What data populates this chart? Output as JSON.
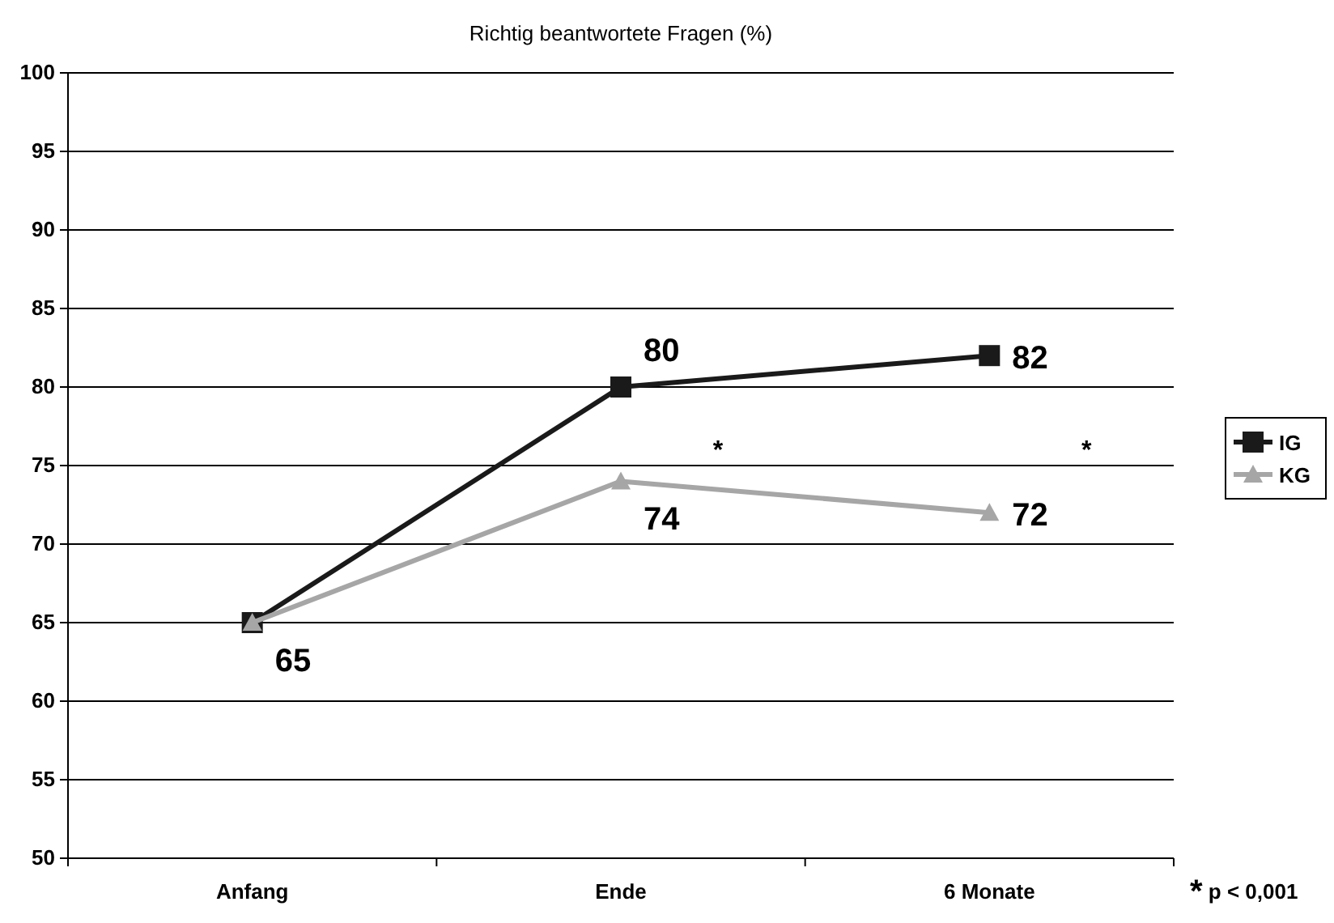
{
  "chart_data": {
    "type": "line",
    "title": "Richtig beantwortete Fragen (%)",
    "categories": [
      "Anfang",
      "Ende",
      "6 Monate"
    ],
    "series": [
      {
        "name": "IG",
        "color": "#1a1a1a",
        "values": [
          65,
          80,
          82
        ],
        "marker": "square",
        "value_labels": [
          null,
          "80",
          "82"
        ]
      },
      {
        "name": "KG",
        "color": "#a6a6a6",
        "values": [
          65,
          74,
          72
        ],
        "marker": "triangle",
        "value_labels": [
          "65",
          "74",
          "72"
        ]
      }
    ],
    "ylim": [
      50,
      100
    ],
    "yticks": [
      50,
      55,
      60,
      65,
      70,
      75,
      80,
      85,
      90,
      95,
      100
    ],
    "grid": "y",
    "legend": "right",
    "annotations": [
      "*",
      "*",
      "* p < 0,001"
    ]
  }
}
